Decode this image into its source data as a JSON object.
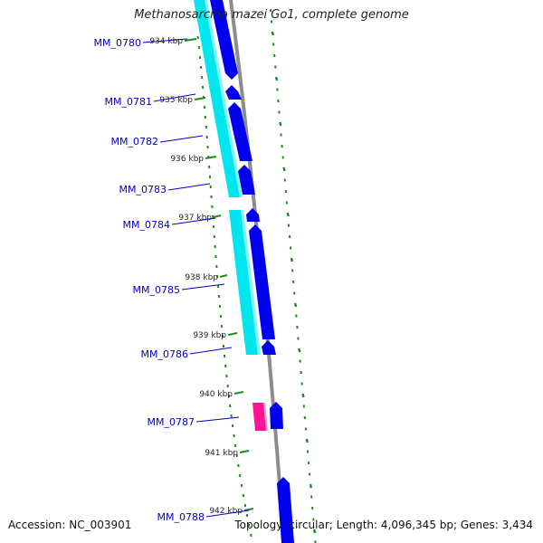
{
  "title": "Methanosarcina mazei Go1, complete genome",
  "footer": {
    "accession": "Accession: NC_003901",
    "summary": "Topology: circular; Length: 4,096,345 bp; Genes: 3,434"
  },
  "colors": {
    "background": "#ffffff",
    "gene_label": "#0000cc",
    "cds_strand": "#0000ee",
    "rna_strand": "#00e5ee",
    "special_gene": "#ff1493",
    "tick": "#1e8a1e",
    "backbone": "#8c8c8c",
    "tick_label": "#222222"
  },
  "ticks": [
    {
      "label": "934 kbp"
    },
    {
      "label": "935 kbp"
    },
    {
      "label": "936 kbp"
    },
    {
      "label": "937 kbp"
    },
    {
      "label": "938 kbp"
    },
    {
      "label": "939 kbp"
    },
    {
      "label": "940 kbp"
    },
    {
      "label": "941 kbp"
    },
    {
      "label": "942 kbp"
    }
  ],
  "genes": [
    {
      "label": "MM_0780"
    },
    {
      "label": "MM_0781"
    },
    {
      "label": "MM_0782"
    },
    {
      "label": "MM_0783"
    },
    {
      "label": "MM_0784"
    },
    {
      "label": "MM_0785"
    },
    {
      "label": "MM_0786"
    },
    {
      "label": "MM_0787"
    },
    {
      "label": "MM_0788"
    }
  ]
}
